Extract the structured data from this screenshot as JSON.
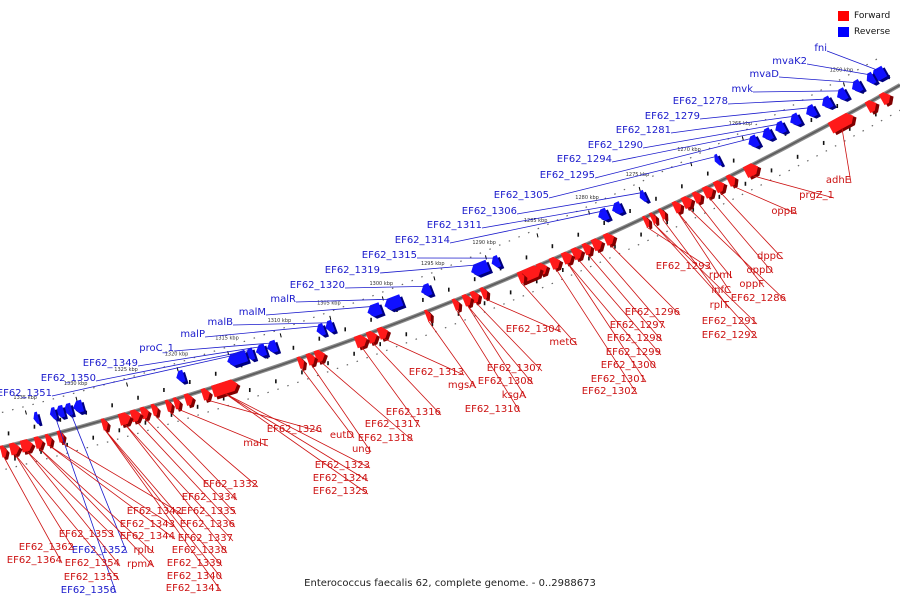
{
  "legend": {
    "forward_label": "Forward",
    "reverse_label": "Reverse",
    "forward_color": "#ff0000",
    "reverse_color": "#0000ff"
  },
  "caption": "Enterococcus faecalis 62, complete genome. - 0..2988673",
  "scale_labels": [
    "1260 kbp",
    "1265 kbp",
    "1270 kbp",
    "1275 kbp",
    "1280 kbp",
    "1285 kbp",
    "1290 kbp",
    "1295 kbp",
    "1300 kbp",
    "1305 kbp",
    "1310 kbp",
    "1315 kbp",
    "1320 kbp",
    "1325 kbp",
    "1330 kbp",
    "1335 kbp"
  ],
  "reverse_genes": [
    "fni",
    "mvaK2",
    "mvaD",
    "mvk",
    "EF62_1278",
    "EF62_1279",
    "EF62_1281",
    "EF62_1290",
    "EF62_1294",
    "EF62_1295",
    "EF62_1305",
    "EF62_1306",
    "EF62_1311",
    "EF62_1314",
    "EF62_1315",
    "EF62_1319",
    "EF62_1320",
    "malR",
    "malM",
    "malB",
    "malP",
    "proC_1",
    "EF62_1349",
    "EF62_1350",
    "EF62_1351",
    "EF62_1352",
    "EF62_1356"
  ],
  "forward_genes": [
    "adhE",
    "prgZ_1",
    "oppB",
    "dppC",
    "oppD",
    "oppF",
    "EF62_1286",
    "rpmI",
    "infC",
    "rplT",
    "EF62_1291",
    "EF62_1292",
    "EF62_1293",
    "EF62_1296",
    "EF62_1297",
    "EF62_1298",
    "EF62_1299",
    "EF62_1300",
    "EF62_1301",
    "EF62_1302",
    "metG",
    "EF62_1304",
    "EF62_1307",
    "EF62_1308",
    "ksgA",
    "EF62_1310",
    "mgsA",
    "EF62_1313",
    "EF62_1316",
    "EF62_1317",
    "EF62_1318",
    "ung",
    "eutD",
    "EF62_1323",
    "EF62_1324",
    "EF62_1325",
    "EF62_1326",
    "malT",
    "EF62_1332",
    "EF62_1334",
    "EF62_1335",
    "EF62_1336",
    "EF62_1337",
    "EF62_1338",
    "EF62_1339",
    "EF62_1340",
    "EF62_1341",
    "EF62_1342",
    "EF62_1343",
    "EF62_1344",
    "rplU",
    "rpmA",
    "EF62_1353",
    "EF62_1354",
    "EF62_1355",
    "EF62_1362",
    "EF62_1364"
  ]
}
